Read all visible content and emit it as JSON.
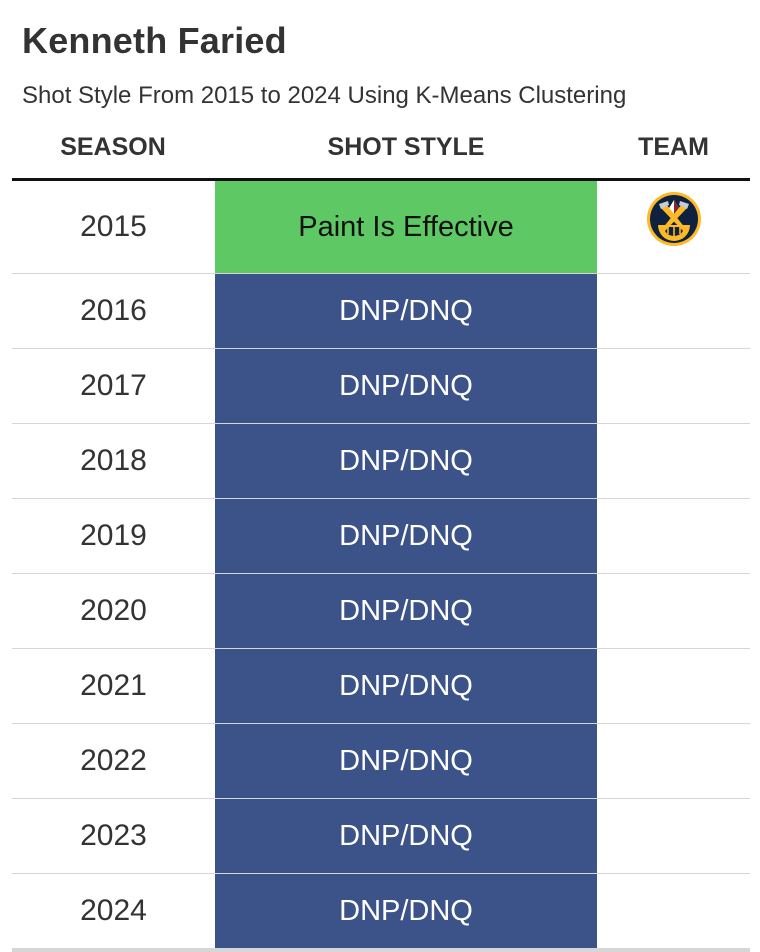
{
  "chart_data": {
    "type": "table",
    "title": "Kenneth Faried",
    "subtitle": "Shot Style From 2015 to 2024 Using K-Means Clustering",
    "columns": [
      "SEASON",
      "SHOT STYLE",
      "TEAM"
    ],
    "colors": {
      "Paint Is Effective": {
        "bg": "#5ec964",
        "fg": "#111111"
      },
      "DNP/DNQ": {
        "bg": "#3c538a",
        "fg": "#ffffff"
      }
    },
    "rows": [
      {
        "season": "2015",
        "style": "Paint Is Effective",
        "team_icon": "denver-nuggets-logo-icon"
      },
      {
        "season": "2016",
        "style": "DNP/DNQ",
        "team_icon": ""
      },
      {
        "season": "2017",
        "style": "DNP/DNQ",
        "team_icon": ""
      },
      {
        "season": "2018",
        "style": "DNP/DNQ",
        "team_icon": ""
      },
      {
        "season": "2019",
        "style": "DNP/DNQ",
        "team_icon": ""
      },
      {
        "season": "2020",
        "style": "DNP/DNQ",
        "team_icon": ""
      },
      {
        "season": "2021",
        "style": "DNP/DNQ",
        "team_icon": ""
      },
      {
        "season": "2022",
        "style": "DNP/DNQ",
        "team_icon": ""
      },
      {
        "season": "2023",
        "style": "DNP/DNQ",
        "team_icon": ""
      },
      {
        "season": "2024",
        "style": "DNP/DNQ",
        "team_icon": ""
      }
    ]
  }
}
